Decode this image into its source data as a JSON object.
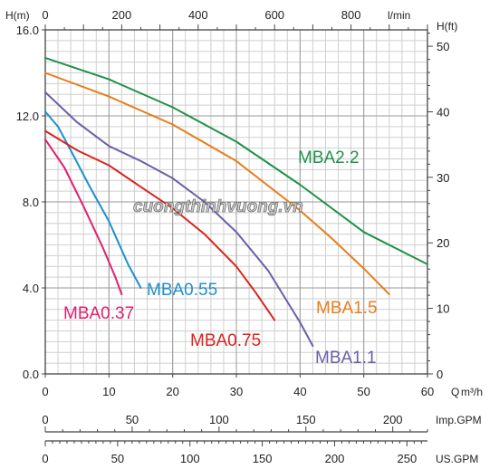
{
  "chart_data": {
    "type": "line",
    "watermark": "cuongthinhvuong.vn",
    "x_primary": {
      "label": "Q m³/h",
      "range": [
        0,
        60
      ],
      "ticks": [
        "0",
        "10",
        "20",
        "30",
        "40",
        "50",
        "60"
      ]
    },
    "x_top": {
      "label": "l/min",
      "range": [
        0,
        1000
      ],
      "ticks": [
        "0",
        "200",
        "400",
        "600",
        "800"
      ]
    },
    "x_imp": {
      "label": "Imp.GPM",
      "range": [
        0,
        220
      ],
      "ticks": [
        "0",
        "50",
        "100",
        "150",
        "200"
      ]
    },
    "x_us": {
      "label": "US.GPM",
      "range": [
        0,
        264
      ],
      "ticks": [
        "0",
        "50",
        "100",
        "150",
        "200",
        "250"
      ]
    },
    "y_left": {
      "label": "H(m)",
      "range": [
        0,
        16
      ],
      "ticks": [
        "0.0",
        "4.0",
        "8.0",
        "12.0",
        "16.0"
      ]
    },
    "y_right": {
      "label": "H(ft)",
      "range": [
        0,
        52.5
      ],
      "ticks": [
        "0",
        "10",
        "20",
        "30",
        "40",
        "50"
      ]
    },
    "grid": true,
    "series": [
      {
        "name": "MBA0.37",
        "color": "#e0206f",
        "x": [
          0,
          3,
          6,
          9,
          11,
          12
        ],
        "y": [
          10.9,
          9.6,
          7.8,
          5.9,
          4.5,
          3.7
        ]
      },
      {
        "name": "MBA0.55",
        "color": "#1e8fd0",
        "x": [
          0,
          2,
          4,
          7,
          10,
          13,
          15
        ],
        "y": [
          12.2,
          11.5,
          10.4,
          8.7,
          7.1,
          5.1,
          4.0
        ]
      },
      {
        "name": "MBA0.75",
        "color": "#d8241d",
        "x": [
          0,
          5,
          10,
          15,
          20,
          25,
          30,
          33,
          36
        ],
        "y": [
          11.3,
          10.4,
          9.7,
          8.7,
          7.7,
          6.5,
          5.0,
          3.8,
          2.5
        ]
      },
      {
        "name": "MBA1.1",
        "color": "#6b5ea8",
        "x": [
          0,
          5,
          10,
          15,
          20,
          25,
          30,
          35,
          40,
          42
        ],
        "y": [
          13.1,
          11.7,
          10.6,
          9.9,
          9.1,
          8.0,
          6.6,
          4.8,
          2.4,
          1.3
        ]
      },
      {
        "name": "MBA1.5",
        "color": "#e87d19",
        "x": [
          0,
          10,
          20,
          30,
          40,
          45,
          50,
          54
        ],
        "y": [
          14.0,
          12.9,
          11.6,
          9.9,
          7.6,
          6.3,
          4.9,
          3.7
        ]
      },
      {
        "name": "MBA2.2",
        "color": "#1f9148",
        "x": [
          0,
          10,
          20,
          30,
          40,
          50,
          60
        ],
        "y": [
          14.7,
          13.7,
          12.4,
          10.8,
          8.8,
          6.6,
          5.1
        ]
      }
    ]
  }
}
